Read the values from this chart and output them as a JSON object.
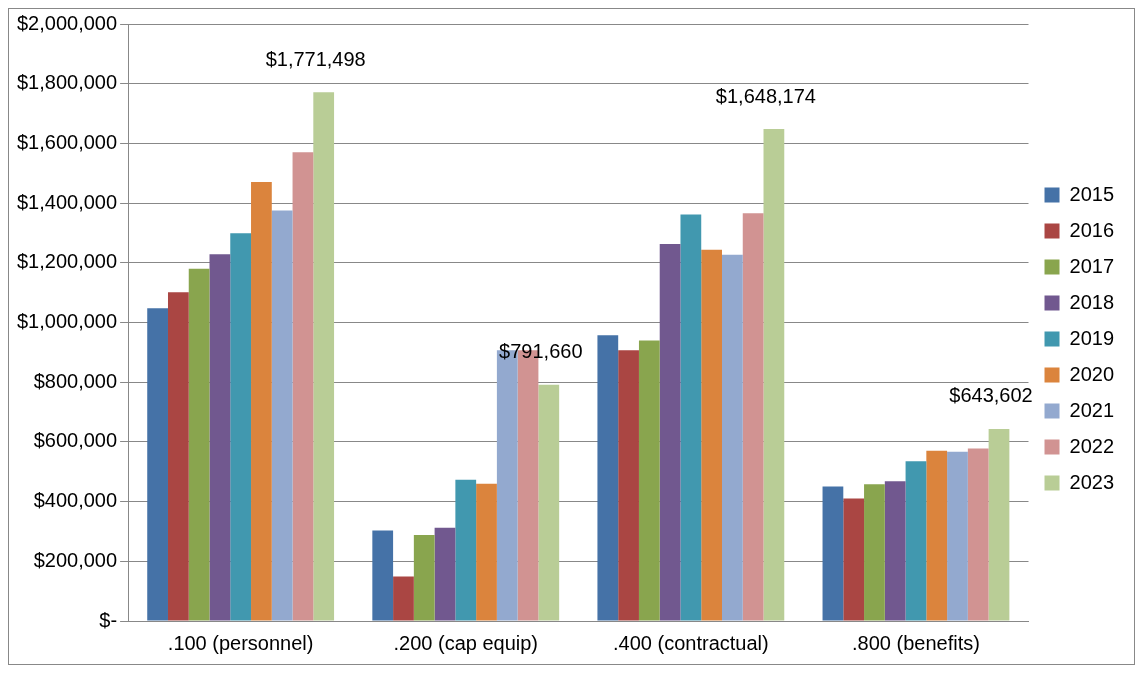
{
  "chart_data": {
    "type": "bar",
    "categories": [
      ".100 (personnel)",
      ".200 (cap equip)",
      ".400 (contractual)",
      ".800 (benefits)"
    ],
    "series": [
      {
        "name": "2015",
        "color": "#4572a7",
        "values": [
          1048000,
          303000,
          957000,
          451000
        ]
      },
      {
        "name": "2016",
        "color": "#aa4643",
        "values": [
          1101000,
          149000,
          907000,
          410000
        ]
      },
      {
        "name": "2017",
        "color": "#89a54e",
        "values": [
          1180000,
          288000,
          940000,
          458000
        ]
      },
      {
        "name": "2018",
        "color": "#71588f",
        "values": [
          1229000,
          312000,
          1263000,
          468000
        ]
      },
      {
        "name": "2019",
        "color": "#4198af",
        "values": [
          1299000,
          473000,
          1362000,
          535000
        ]
      },
      {
        "name": "2020",
        "color": "#db843d",
        "values": [
          1471000,
          460000,
          1244000,
          570000
        ]
      },
      {
        "name": "2021",
        "color": "#93a9cf",
        "values": [
          1375000,
          907000,
          1227000,
          567000
        ]
      },
      {
        "name": "2022",
        "color": "#d19392",
        "values": [
          1570000,
          907000,
          1366000,
          578000
        ]
      },
      {
        "name": "2023",
        "color": "#b9cd96",
        "values": [
          1771498,
          791660,
          1648174,
          643602
        ],
        "value_labels": [
          "$1,771,498",
          "$791,660",
          "$1,648,174",
          "$643,602"
        ]
      }
    ],
    "ylim": [
      0,
      2000000
    ],
    "yticks": [
      {
        "value": 0,
        "label": "$-"
      },
      {
        "value": 200000,
        "label": "$200,000"
      },
      {
        "value": 400000,
        "label": "$400,000"
      },
      {
        "value": 600000,
        "label": "$600,000"
      },
      {
        "value": 800000,
        "label": "$800,000"
      },
      {
        "value": 1000000,
        "label": "$1,000,000"
      },
      {
        "value": 1200000,
        "label": "$1,200,000"
      },
      {
        "value": 1400000,
        "label": "$1,400,000"
      },
      {
        "value": 1600000,
        "label": "$1,600,000"
      },
      {
        "value": 1800000,
        "label": "$1,800,000"
      },
      {
        "value": 2000000,
        "label": "$2,000,000"
      }
    ],
    "grid": "y",
    "legend": "right"
  }
}
